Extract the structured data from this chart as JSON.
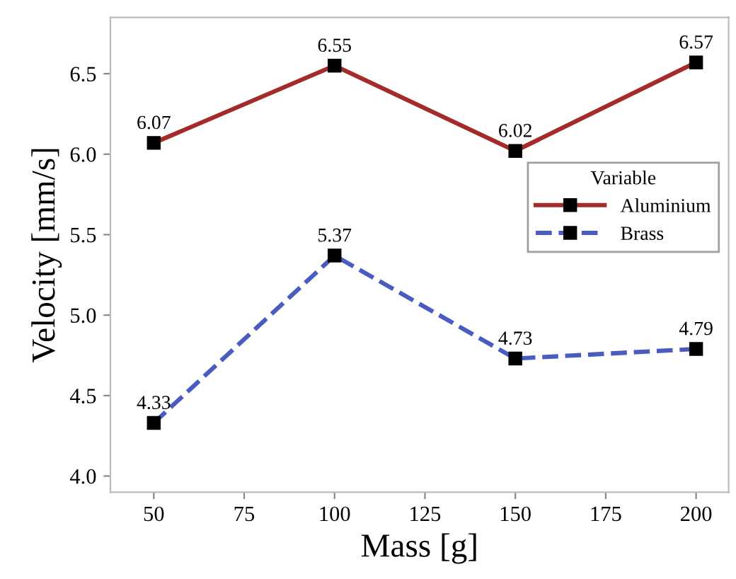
{
  "chart_data": {
    "type": "line",
    "xlabel": "Mass [g]",
    "ylabel": "Velocity [mm/s]",
    "x": [
      50,
      100,
      150,
      200
    ],
    "series": [
      {
        "name": "Aluminium",
        "color": "#a52a2a",
        "values": [
          6.07,
          6.55,
          6.02,
          6.57
        ],
        "line_style": "solid"
      },
      {
        "name": "Brass",
        "color": "#4a5cbf",
        "values": [
          4.33,
          5.37,
          4.73,
          4.79
        ],
        "line_style": "dashed"
      }
    ],
    "xlim": [
      38,
      209
    ],
    "xticks": [
      50,
      75,
      100,
      125,
      150,
      175,
      200
    ],
    "ylim": [
      3.9,
      6.85
    ],
    "yticks": [
      {
        "value": 4.0,
        "label": "4.0"
      },
      {
        "value": 4.5,
        "label": "4.5"
      },
      {
        "value": 5.0,
        "label": "5.0"
      },
      {
        "value": 5.5,
        "label": "5.5"
      },
      {
        "value": 6.0,
        "label": "6.0"
      },
      {
        "value": 6.5,
        "label": "6.5"
      }
    ],
    "legend_title": "Variable",
    "legend": "right",
    "marker": "square",
    "data_labels": true,
    "grid": false
  }
}
